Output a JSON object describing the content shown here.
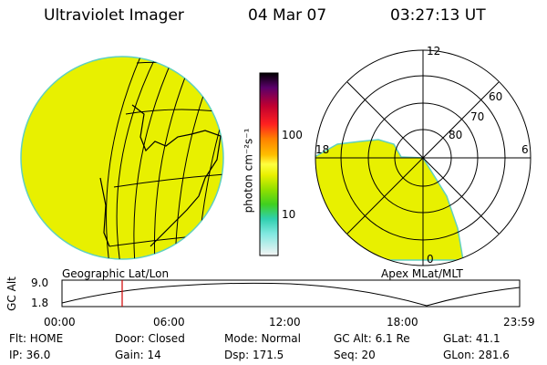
{
  "header": {
    "title": "Ultraviolet Imager",
    "date": "04 Mar 07",
    "time": "03:27:13 UT"
  },
  "colorbar": {
    "unit_label": "photon cm⁻²s⁻¹",
    "ticks": [
      "100",
      "10"
    ]
  },
  "left_panel": {
    "label": "Geographic Lat/Lon",
    "fill_color": "#e8f000"
  },
  "right_panel": {
    "label": "Apex MLat/MLT",
    "mlt_labels": {
      "top": "12",
      "left": "18",
      "right": "6",
      "bottom": "0"
    },
    "lat_labels": [
      "60",
      "70",
      "80"
    ],
    "fill_color": "#e8f000"
  },
  "timeline": {
    "ylabel": "GC Alt",
    "y_ticks": [
      "9.0",
      "1.8"
    ],
    "x_ticks": [
      "00:00",
      "06:00",
      "12:00",
      "18:00",
      "23:59"
    ],
    "marker_time": "03:27",
    "marker_color": "#d00000"
  },
  "info": {
    "flt": "Flt: HOME",
    "door": "Door: Closed",
    "mode": "Mode: Normal",
    "gc_alt": "GC Alt: 6.1 Re",
    "glat": "GLat:  41.1",
    "ip": "IP: 36.0",
    "gain": "Gain: 14",
    "dsp": "Dsp:  171.5",
    "seq": "Seq: 20",
    "glon": "GLon: 281.6"
  }
}
